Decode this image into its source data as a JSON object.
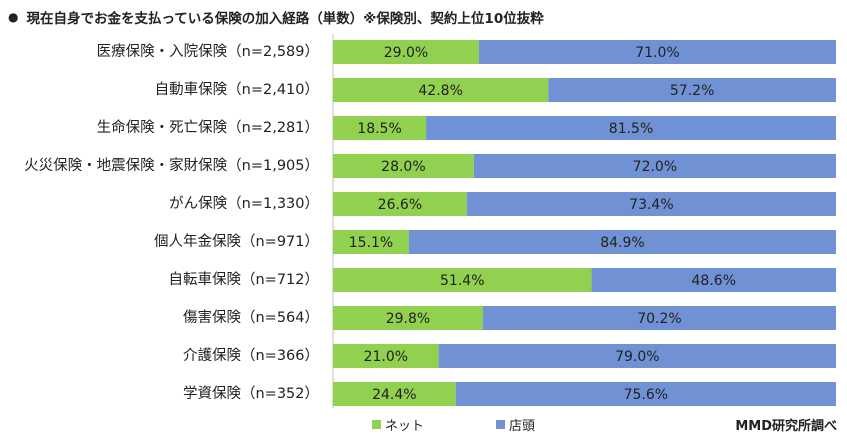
{
  "chart_data": {
    "type": "bar",
    "stacked": true,
    "orientation": "horizontal",
    "percent_stacked": true,
    "title": "現在自身でお金を支払っている保険の加入経路（単数）※保険別、契約上位10位抜粋",
    "title_bullet": "●",
    "categories": [
      "医療保険・入院保険（n=2,589）",
      "自動車保険（n=2,410）",
      "生命保険・死亡保険（n=2,281）",
      "火災保険・地震保険・家財保険（n=1,905）",
      "がん保険（n=1,330）",
      "個人年金保険（n=971）",
      "自転車保険（n=712）",
      "傷害保険（n=564）",
      "介護保険（n=366）",
      "学資保険（n=352）"
    ],
    "series": [
      {
        "name": "ネット",
        "color": "#92d050",
        "values": [
          29.0,
          42.8,
          18.5,
          28.0,
          26.6,
          15.1,
          51.4,
          29.8,
          21.0,
          24.4
        ]
      },
      {
        "name": "店頭",
        "color": "#7092d4",
        "values": [
          71.0,
          57.2,
          81.5,
          72.0,
          73.4,
          84.9,
          48.6,
          70.2,
          79.0,
          75.6
        ]
      }
    ],
    "value_suffix": "%",
    "xlim": [
      0,
      100
    ],
    "grid": false,
    "legend_position": "bottom"
  },
  "source_note": "MMD研究所調べ"
}
